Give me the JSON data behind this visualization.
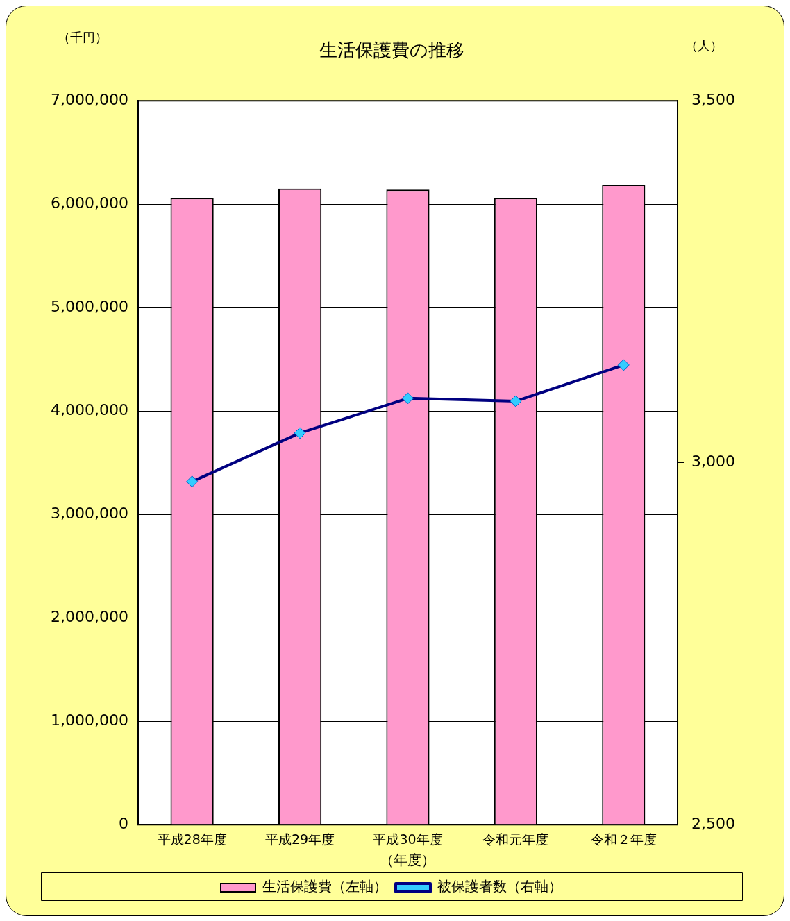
{
  "chart_data": {
    "type": "bar",
    "title": "生活保護費の推移",
    "xlabel": "（年度）",
    "ylabel": "（千円）",
    "y2label": "（人）",
    "categories": [
      "平成28年度",
      "平成29年度",
      "平成30年度",
      "令和元年度",
      "令和２年度"
    ],
    "series": [
      {
        "name": "生活保護費（左軸）",
        "color": "#ff99cc",
        "values": [
          6060000,
          6150000,
          6140000,
          6060000,
          6190000
        ]
      },
      {
        "name": "被保護者数（右軸）",
        "type": "line",
        "axis": "y2",
        "color": "#000080",
        "marker": "diamond",
        "values": [
          2974,
          3041,
          3089,
          3085,
          3135
        ]
      }
    ],
    "ylim": [
      0,
      7000000
    ],
    "yticks": [
      0,
      {
        "value": 1000000,
        "label": "1,000,000"
      },
      {
        "value": 2000000,
        "label": "2,000,000"
      },
      {
        "value": 3000000,
        "label": "3,000,000"
      },
      {
        "value": 4000000,
        "label": "4,000,000"
      },
      {
        "value": 5000000,
        "label": "5,000,000"
      },
      {
        "value": 6000000,
        "label": "6,000,000"
      },
      {
        "value": 7000000,
        "label": "7,000,000"
      }
    ],
    "y2lim": [
      2500,
      3500
    ],
    "y2ticks": [
      {
        "value": 2500,
        "label": "2,500"
      },
      {
        "value": 3000,
        "label": "3,000"
      },
      {
        "value": 3500,
        "label": "3,500"
      }
    ],
    "grid": "y",
    "legend": "bottom"
  }
}
